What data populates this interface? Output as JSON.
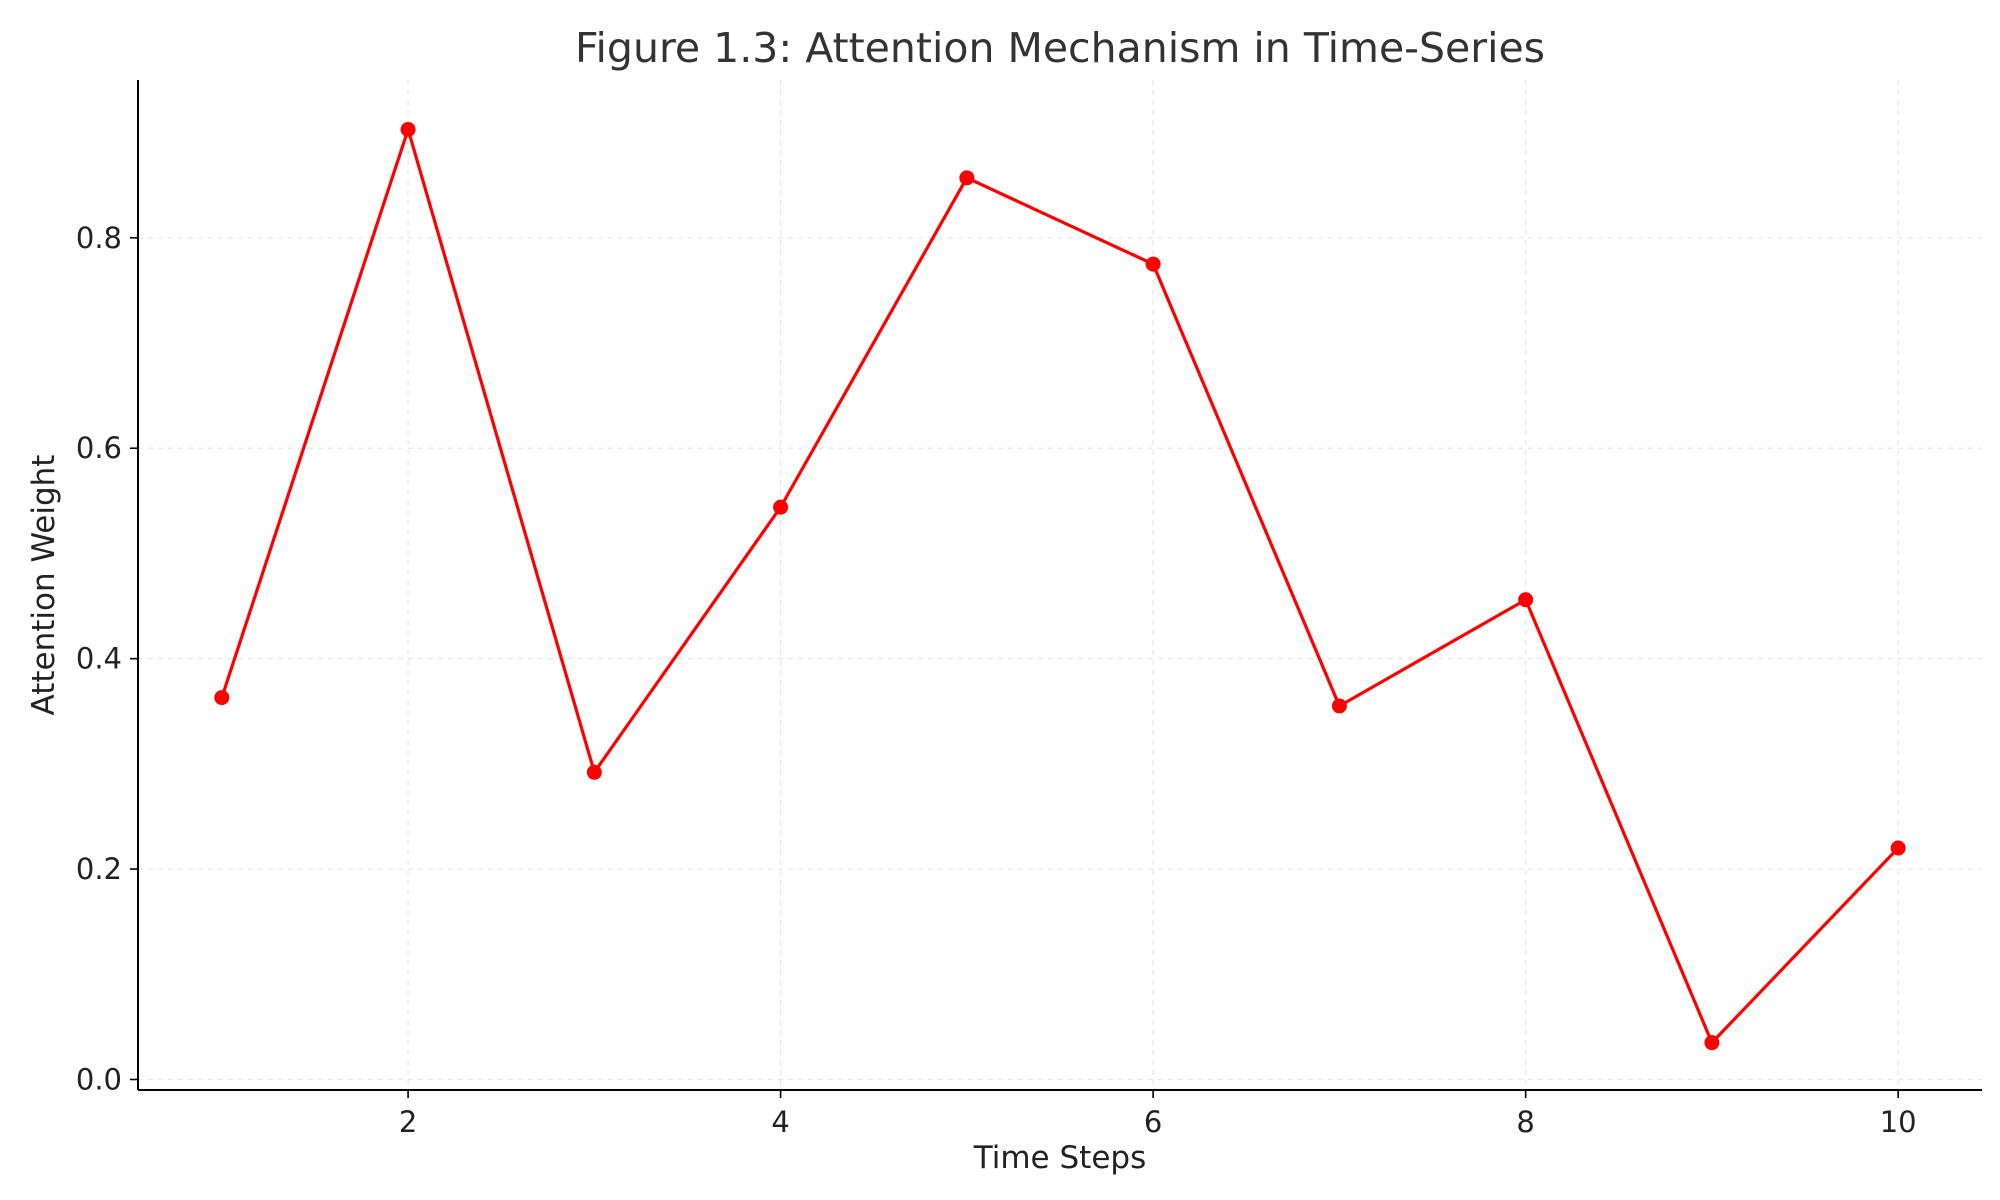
{
  "chart_data": {
    "type": "line",
    "title": "Figure 1.3: Attention Mechanism in Time-Series",
    "xlabel": "Time Steps",
    "ylabel": "Attention Weight",
    "x": [
      1,
      2,
      3,
      4,
      5,
      6,
      7,
      8,
      9,
      10
    ],
    "series": [
      {
        "values": [
          0.363,
          0.903,
          0.292,
          0.544,
          0.857,
          0.775,
          0.355,
          0.456,
          0.035,
          0.22
        ],
        "color": "#ff0000"
      }
    ],
    "xlim": [
      0.55,
      10.45
    ],
    "ylim": [
      -0.01,
      0.95
    ],
    "xticks": [
      2,
      4,
      6,
      8,
      10
    ],
    "xtick_labels": [
      "2",
      "4",
      "6",
      "8",
      "10"
    ],
    "yticks": [
      0.0,
      0.2,
      0.4,
      0.6,
      0.8
    ],
    "ytick_labels": [
      "0.0",
      "0.2",
      "0.4",
      "0.6",
      "0.8"
    ],
    "grid": true,
    "grid_style": "dashed",
    "marker": "circle",
    "legend": false,
    "colors": {
      "line": "#ff0000",
      "grid": "#e5e5e5",
      "axis": "#000000",
      "title": "#333333",
      "text": "#222222"
    }
  }
}
